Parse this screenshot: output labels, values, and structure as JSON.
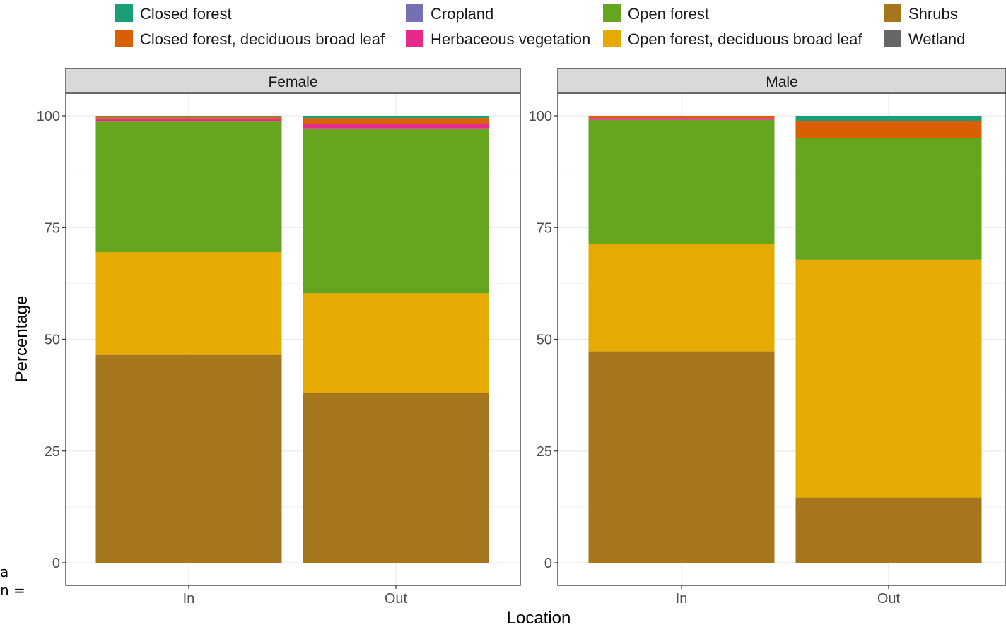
{
  "chart_data": {
    "type": "bar",
    "stacked": true,
    "xlabel": "Location",
    "ylabel": "Percentage",
    "ylim": [
      0,
      100
    ],
    "yticks": [
      0,
      25,
      50,
      75,
      100
    ],
    "categories": [
      "In",
      "Out"
    ],
    "grid": true,
    "legend_position": "top",
    "legend": [
      {
        "name": "Closed forest",
        "color": "#1b9e77"
      },
      {
        "name": "Cropland",
        "color": "#7570b3"
      },
      {
        "name": "Open forest",
        "color": "#66a61e"
      },
      {
        "name": "Shrubs",
        "color": "#a6761d"
      },
      {
        "name": "Closed forest, deciduous broad leaf",
        "color": "#d95f02"
      },
      {
        "name": "Herbaceous vegetation",
        "color": "#e7298a"
      },
      {
        "name": "Open forest, deciduous broad leaf",
        "color": "#e6ab02"
      },
      {
        "name": "Wetland",
        "color": "#666666"
      }
    ],
    "stack_order": [
      "Shrubs",
      "Open forest, deciduous broad leaf",
      "Open forest",
      "Herbaceous vegetation",
      "Cropland",
      "Closed forest, deciduous broad leaf",
      "Closed forest",
      "Wetland"
    ],
    "panels": [
      {
        "label": "Female",
        "series": [
          {
            "name": "Shrubs",
            "values": [
              46.5,
              38.0
            ]
          },
          {
            "name": "Open forest, deciduous broad leaf",
            "values": [
              23.0,
              22.3
            ]
          },
          {
            "name": "Open forest",
            "values": [
              29.2,
              36.9
            ]
          },
          {
            "name": "Herbaceous vegetation",
            "values": [
              0.7,
              0.9
            ]
          },
          {
            "name": "Cropland",
            "values": [
              0.0,
              0.0
            ]
          },
          {
            "name": "Closed forest, deciduous broad leaf",
            "values": [
              0.5,
              1.4
            ]
          },
          {
            "name": "Closed forest",
            "values": [
              0.1,
              0.5
            ]
          },
          {
            "name": "Wetland",
            "values": [
              0.0,
              0.0
            ]
          }
        ]
      },
      {
        "label": "Male",
        "series": [
          {
            "name": "Shrubs",
            "values": [
              47.3,
              14.6
            ]
          },
          {
            "name": "Open forest, deciduous broad leaf",
            "values": [
              24.1,
              53.2
            ]
          },
          {
            "name": "Open forest",
            "values": [
              27.7,
              27.2
            ]
          },
          {
            "name": "Herbaceous vegetation",
            "values": [
              0.4,
              0.0
            ]
          },
          {
            "name": "Cropland",
            "values": [
              0.0,
              0.0
            ]
          },
          {
            "name": "Closed forest, deciduous broad leaf",
            "values": [
              0.5,
              3.8
            ]
          },
          {
            "name": "Closed forest",
            "values": [
              0.0,
              1.2
            ]
          },
          {
            "name": "Wetland",
            "values": [
              0.0,
              0.0
            ]
          }
        ]
      }
    ]
  },
  "stray_text": [
    "a",
    "n ="
  ]
}
